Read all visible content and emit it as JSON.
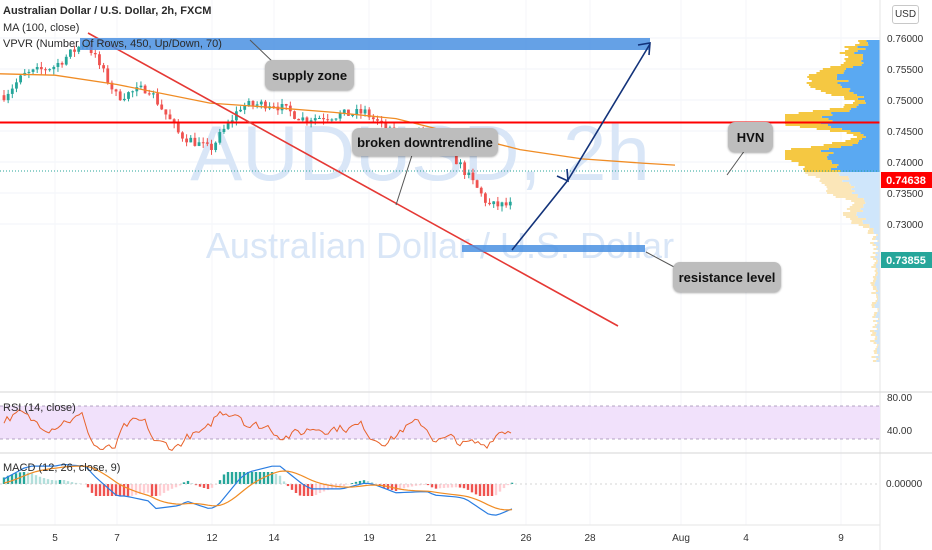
{
  "header": {
    "symbol_line": "Australian Dollar / U.S. Dollar, 2h, FXCM",
    "ma_line": "MA (100, close)",
    "vpvr_line": "VPVR (Number Of Rows, 450, Up/Down, 70)",
    "currency_button": "USD"
  },
  "watermark": {
    "symbol": "AUDUSD, 2h",
    "name": "Australian Dollar / U.S. Dollar"
  },
  "annotations": {
    "supply_zone": "supply zone",
    "broken_downtrendline": "broken downtrendline",
    "hvn": "HVN",
    "resistance_level": "resistance level"
  },
  "price_axis": {
    "ticks": [
      "0.76000",
      "0.75500",
      "0.75000",
      "0.74500",
      "0.74000",
      "0.73500",
      "0.73000"
    ],
    "red_line_label": "0.74638",
    "current_price_label": "0.73855"
  },
  "time_axis": {
    "ticks": [
      "5",
      "7",
      "12",
      "14",
      "19",
      "21",
      "26",
      "28",
      "Aug",
      "4",
      "9"
    ]
  },
  "rsi": {
    "title": "RSI (14, close)",
    "ticks": [
      "80.00",
      "40.00"
    ]
  },
  "macd": {
    "title": "MACD (12, 26, close, 9)",
    "ticks": [
      "0.00000"
    ]
  },
  "colors": {
    "bull": "#26a69a",
    "bear": "#ef5350",
    "ma": "#f08c24",
    "trendline": "#e53935",
    "horizontal_line": "#ff0000",
    "zone": "#4a90e2",
    "arrow": "#13337a",
    "vpvr_yellow": "#f5c842",
    "vpvr_blue": "#5aa9f2"
  },
  "chart_data": {
    "type": "candlestick",
    "symbol": "AUDUSD",
    "timeframe": "2h",
    "ylim": [
      0.7285,
      0.763
    ],
    "levels": {
      "resistance_level": 0.74638,
      "current_price": 0.73855,
      "supply_zone": [
        0.7593,
        0.7605
      ],
      "resistance_zone": [
        0.7392,
        0.7398
      ]
    },
    "trendline": {
      "from": {
        "x": "Jul 6",
        "y": 0.7605
      },
      "to": {
        "x": "Jul 29",
        "y": 0.732
      }
    },
    "projection_arrow": [
      {
        "x": "Jul 25",
        "y": 0.739
      },
      {
        "x": "Jul 27",
        "y": 0.7465
      },
      {
        "x": "Jul 31",
        "y": 0.76
      }
    ],
    "close_path": [
      [
        "Jul 1",
        0.749
      ],
      [
        "Jul 2",
        0.7475
      ],
      [
        "Jul 3",
        0.749
      ],
      [
        "Jul 4",
        0.754
      ],
      [
        "Jul 5",
        0.7555
      ],
      [
        "Jul 6",
        0.7595
      ],
      [
        "Jul 7",
        0.7505
      ],
      [
        "Jul 8",
        0.752
      ],
      [
        "Jul 9",
        0.7445
      ],
      [
        "Jul 10",
        0.742
      ],
      [
        "Jul 11",
        0.749
      ],
      [
        "Jul 12",
        0.7495
      ],
      [
        "Jul 13",
        0.747
      ],
      [
        "Jul 14",
        0.7475
      ],
      [
        "Jul 15",
        0.748
      ],
      [
        "Jul 16",
        0.744
      ],
      [
        "Jul 17",
        0.745
      ],
      [
        "Jul 18",
        0.74
      ],
      [
        "Jul 19",
        0.733
      ],
      [
        "Jul 20",
        0.733
      ],
      [
        "Jul 21",
        0.7305
      ],
      [
        "Jul 22",
        0.7345
      ],
      [
        "Jul 23",
        0.7365
      ],
      [
        "Jul 24",
        0.7375
      ],
      [
        "Jul 25",
        0.7386
      ]
    ],
    "ma100": [
      [
        "Jul 1",
        0.7545
      ],
      [
        "Jul 5",
        0.754
      ],
      [
        "Jul 7",
        0.7525
      ],
      [
        "Jul 10",
        0.7495
      ],
      [
        "Jul 12",
        0.7488
      ],
      [
        "Jul 14",
        0.748
      ],
      [
        "Jul 16",
        0.747
      ],
      [
        "Jul 18",
        0.7445
      ],
      [
        "Jul 20",
        0.742
      ],
      [
        "Jul 22",
        0.7405
      ],
      [
        "Jul 24",
        0.7398
      ],
      [
        "Jul 25",
        0.7395
      ]
    ],
    "rsi_ylim": [
      20,
      90
    ],
    "rsi_band": [
      30,
      70
    ],
    "macd_zero_line": 0
  }
}
